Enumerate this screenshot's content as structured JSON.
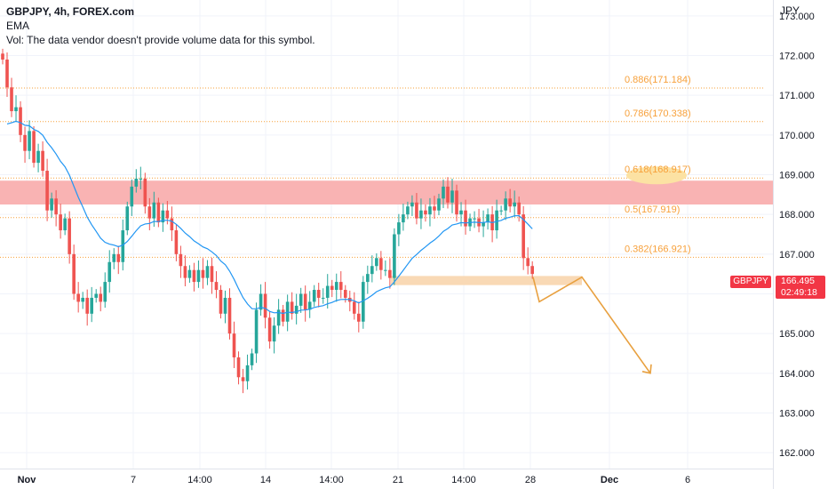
{
  "header": {
    "symbol_line": "GBPJPY, 4h, FOREX.com",
    "ema_label": "EMA",
    "vol_line": "Vol: The data vendor doesn't provide volume data for this symbol."
  },
  "price_tag": {
    "symbol": "GBPJPY",
    "price": "166.495",
    "countdown": "02:49:18",
    "color": "#f23645"
  },
  "chart_data": {
    "type": "candlestick",
    "currency_label": "JPY",
    "ylim": [
      161.6,
      173.4
    ],
    "y_ticks": [
      "162.000",
      "163.000",
      "164.000",
      "165.000",
      "166.000",
      "167.000",
      "168.000",
      "169.000",
      "170.000",
      "171.000",
      "172.000",
      "173.000"
    ],
    "x_ticks": [
      "Nov",
      "7",
      "14:00",
      "14",
      "14:00",
      "21",
      "14:00",
      "28",
      "Dec",
      "6"
    ],
    "up_color": "#26a69a",
    "down_color": "#ef5350",
    "ema_color": "#2196f3",
    "fib_color": "#f7a03a",
    "fib_levels": [
      {
        "label": "0.886(171.184)",
        "price": 171.184
      },
      {
        "label": "0.786(170.338)",
        "price": 170.338
      },
      {
        "label": "0.618(168.917)",
        "price": 168.917,
        "highlight": true
      },
      {
        "label": "0.5(167.919)",
        "price": 167.919
      },
      {
        "label": "0.382(166.921)",
        "price": 166.921
      }
    ],
    "resistance_zone": {
      "low": 168.25,
      "high": 168.85,
      "color": "#f9b3b3"
    },
    "support_zone": {
      "low": 166.22,
      "high": 166.45,
      "color": "#f9d9b5"
    },
    "projection": {
      "color": "#e8a03f",
      "points": [
        [
          166.42
        ],
        [
          165.8
        ],
        [
          166.42
        ],
        [
          164.0
        ]
      ]
    },
    "closes": [
      171.9,
      171.2,
      170.6,
      170.7,
      170.0,
      169.6,
      170.1,
      169.3,
      169.6,
      169.1,
      168.1,
      168.4,
      168.0,
      167.6,
      167.9,
      167.0,
      166.0,
      165.8,
      165.9,
      165.5,
      165.9,
      166.0,
      165.8,
      166.3,
      166.8,
      167.0,
      166.8,
      167.6,
      168.2,
      168.7,
      168.9,
      168.9,
      168.2,
      167.9,
      168.3,
      167.8,
      168.1,
      167.9,
      167.6,
      167.0,
      166.7,
      166.4,
      166.6,
      166.3,
      166.6,
      166.4,
      166.7,
      166.3,
      166.1,
      165.5,
      165.9,
      165.0,
      164.4,
      163.9,
      163.8,
      164.2,
      164.5,
      165.6,
      166.0,
      165.4,
      164.8,
      165.2,
      165.6,
      165.3,
      165.8,
      165.5,
      165.7,
      166.0,
      165.6,
      165.8,
      166.1,
      165.9,
      165.9,
      166.2,
      166.1,
      166.3,
      166.1,
      165.9,
      165.8,
      165.5,
      165.3,
      166.3,
      166.5,
      166.7,
      166.9,
      166.6,
      166.6,
      166.4,
      167.5,
      167.8,
      168.0,
      168.2,
      168.3,
      167.9,
      168.1,
      168.0,
      168.2,
      168.1,
      168.4,
      168.7,
      168.3,
      168.6,
      168.0,
      168.1,
      167.7,
      167.9,
      167.9,
      167.7,
      167.8,
      168.0,
      167.6,
      168.1,
      168.1,
      168.4,
      168.2,
      168.3,
      168.0,
      166.9,
      166.7,
      166.5
    ]
  }
}
